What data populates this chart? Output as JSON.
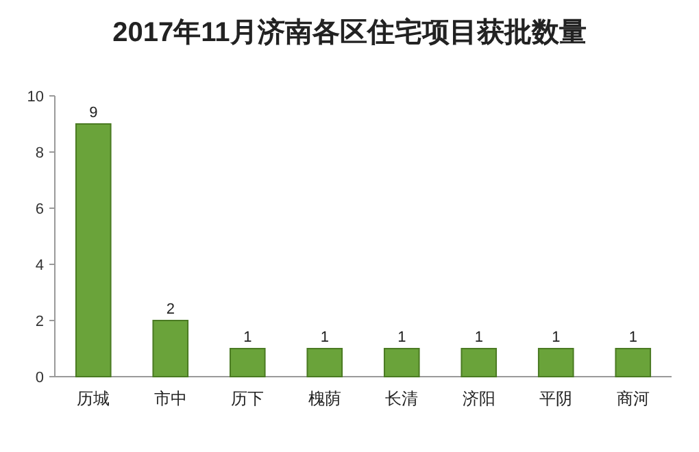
{
  "chart_data": {
    "type": "bar",
    "title": "2017年11月济南各区住宅项目获批数量",
    "categories": [
      "历城",
      "市中",
      "历下",
      "槐荫",
      "长清",
      "济阳",
      "平阴",
      "商河"
    ],
    "values": [
      9,
      2,
      1,
      1,
      1,
      1,
      1,
      1
    ],
    "color": "#6aa33a",
    "ylim": [
      0,
      10
    ],
    "yticks": [
      0,
      2,
      4,
      6,
      8,
      10
    ],
    "data_labels": true
  }
}
